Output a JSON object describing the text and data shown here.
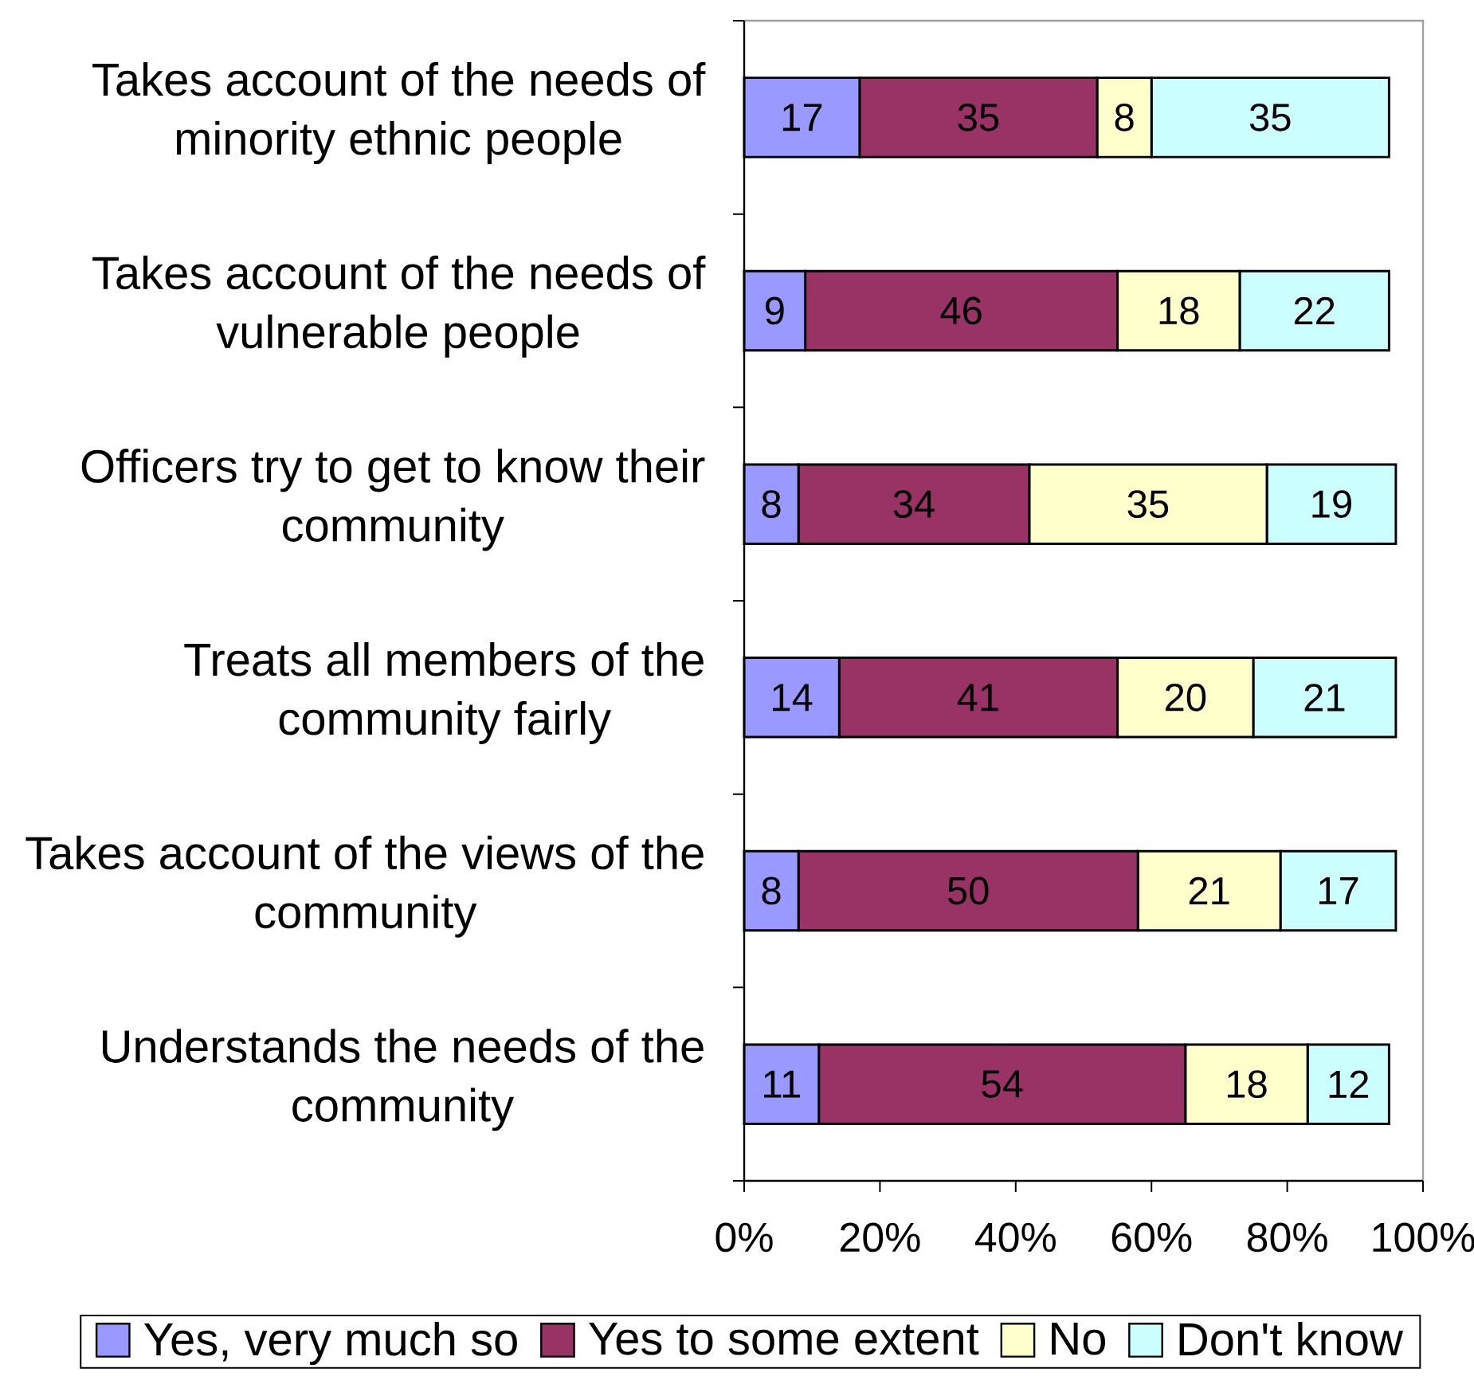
{
  "chart_data": {
    "type": "bar",
    "orientation": "horizontal",
    "stacked": true,
    "categories": [
      "Takes account of the needs of minority ethnic people",
      "Takes account of the needs of vulnerable people",
      "Officers try to get to know their community",
      "Treats all members of the community fairly",
      "Takes account of the views of the community",
      "Understands the needs of the community"
    ],
    "series": [
      {
        "name": "Yes, very much so",
        "color": "#9999ff",
        "values": [
          17,
          9,
          8,
          14,
          8,
          11
        ]
      },
      {
        "name": "Yes to some extent",
        "color": "#993366",
        "values": [
          35,
          46,
          34,
          41,
          50,
          54
        ]
      },
      {
        "name": "No",
        "color": "#ffffcc",
        "values": [
          8,
          18,
          35,
          20,
          21,
          18
        ]
      },
      {
        "name": "Don't know",
        "color": "#ccffff",
        "values": [
          35,
          22,
          19,
          21,
          17,
          12
        ]
      }
    ],
    "xlim": [
      0,
      100
    ],
    "xticks": [
      {
        "value": 0,
        "label": "0%"
      },
      {
        "value": 20,
        "label": "20%"
      },
      {
        "value": 40,
        "label": "40%"
      },
      {
        "value": 60,
        "label": "60%"
      },
      {
        "value": 80,
        "label": "80%"
      },
      {
        "value": 100,
        "label": "100%"
      }
    ],
    "data_labels": true,
    "legend": "bottom"
  }
}
